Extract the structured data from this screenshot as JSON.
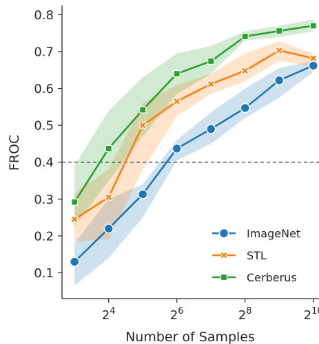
{
  "chart_data": {
    "type": "line",
    "xlabel": "Number of Samples",
    "ylabel": "FROC",
    "x_scale": "log2",
    "x": [
      8,
      16,
      32,
      64,
      128,
      256,
      512,
      1024
    ],
    "xlim": [
      6.2,
      1150
    ],
    "ylim": [
      0.03,
      0.825
    ],
    "xticks": [
      {
        "value": 16,
        "base": "2",
        "exp": "4"
      },
      {
        "value": 64,
        "base": "2",
        "exp": "6"
      },
      {
        "value": 256,
        "base": "2",
        "exp": "8"
      },
      {
        "value": 1024,
        "base": "2",
        "exp": "10"
      }
    ],
    "yticks": [
      {
        "value": 0.1,
        "label": "0.1"
      },
      {
        "value": 0.2,
        "label": "0.2"
      },
      {
        "value": 0.3,
        "label": "0.3"
      },
      {
        "value": 0.4,
        "label": "0.4"
      },
      {
        "value": 0.5,
        "label": "0.5"
      },
      {
        "value": 0.6,
        "label": "0.6"
      },
      {
        "value": 0.7,
        "label": "0.7"
      },
      {
        "value": 0.8,
        "label": "0.8"
      }
    ],
    "reference_line": {
      "y": 0.4,
      "style": "dashed",
      "color": "#333333"
    },
    "grid": false,
    "legend_position": "bottom-right",
    "series": [
      {
        "name": "ImageNet",
        "color": "#1f77b4",
        "marker": "circle",
        "values": [
          0.13,
          0.22,
          0.313,
          0.437,
          0.49,
          0.547,
          0.622,
          0.662
        ],
        "band_low": [
          0.065,
          0.14,
          0.25,
          0.405,
          0.45,
          0.52,
          0.575,
          0.645
        ],
        "band_high": [
          0.18,
          0.3,
          0.34,
          0.46,
          0.535,
          0.6,
          0.655,
          0.675
        ]
      },
      {
        "name": "STL",
        "color": "#ff7f0e",
        "marker": "x",
        "values": [
          0.245,
          0.305,
          0.5,
          0.565,
          0.612,
          0.648,
          0.703,
          0.682
        ],
        "band_low": [
          0.185,
          0.19,
          0.38,
          0.525,
          0.585,
          0.62,
          0.675,
          0.66
        ],
        "band_high": [
          0.315,
          0.38,
          0.56,
          0.61,
          0.64,
          0.695,
          0.728,
          0.695
        ]
      },
      {
        "name": "Cerberus",
        "color": "#2ca02c",
        "marker": "square",
        "values": [
          0.292,
          0.437,
          0.542,
          0.64,
          0.674,
          0.741,
          0.756,
          0.77
        ],
        "band_low": [
          0.225,
          0.35,
          0.47,
          0.585,
          0.64,
          0.73,
          0.74,
          0.755
        ],
        "band_high": [
          0.39,
          0.54,
          0.63,
          0.695,
          0.715,
          0.755,
          0.77,
          0.787
        ]
      }
    ]
  }
}
